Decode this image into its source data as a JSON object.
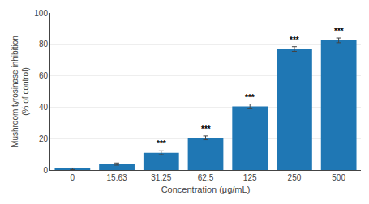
{
  "chart_data": {
    "type": "bar",
    "categories": [
      "0",
      "15.63",
      "31.25",
      "62.5",
      "125",
      "250",
      "500"
    ],
    "values": [
      0.8,
      3.8,
      11.0,
      20.5,
      40.5,
      77.0,
      82.5
    ],
    "errors": [
      0.5,
      0.7,
      1.2,
      1.2,
      1.5,
      1.5,
      1.5
    ],
    "significance": [
      null,
      null,
      "***",
      "***",
      "***",
      "***",
      "***"
    ],
    "xlabel": "Concentration (μg/mL)",
    "ylabel": "Mushroom tyrosinase inhibition\n(% of control)",
    "ylim": [
      0,
      100
    ],
    "yticks": [
      0,
      20,
      40,
      60,
      80,
      100
    ],
    "grid": true
  }
}
